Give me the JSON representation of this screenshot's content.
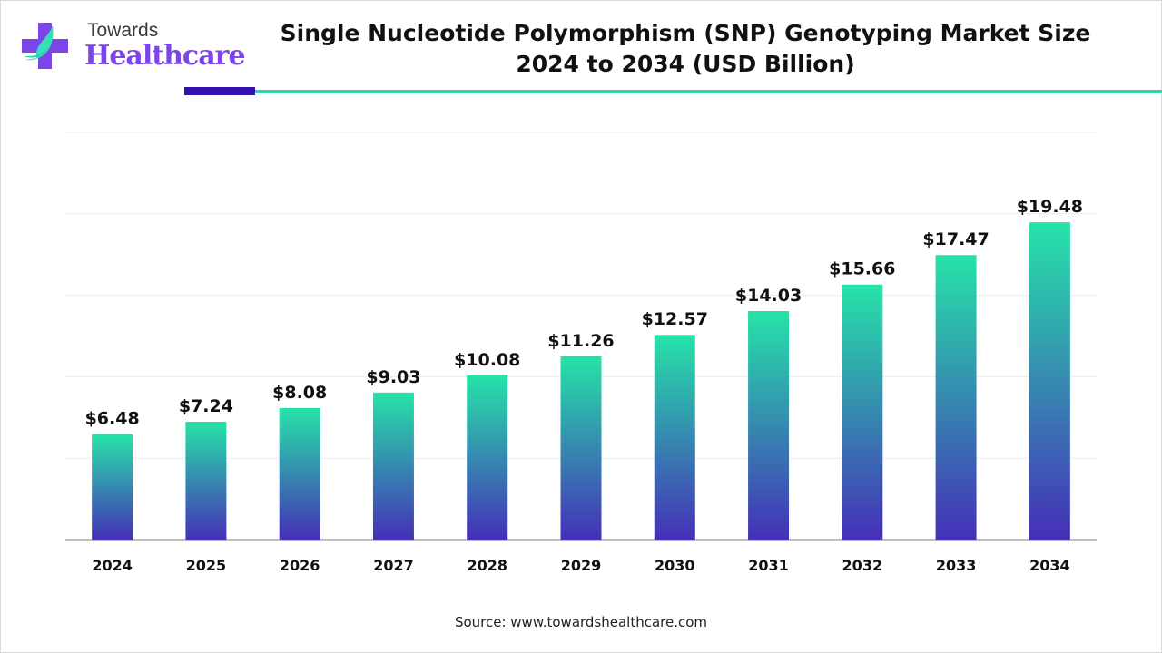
{
  "logo": {
    "line1": "Towards",
    "line2": "Healthcare"
  },
  "header": {
    "title_line1": "Single Nucleotide Polymorphism (SNP) Genotyping Market Size",
    "title_line2": "2024 to 2034 (USD Billion)"
  },
  "colors": {
    "bar_top": "#26e3a8",
    "bar_bottom": "#4530b8",
    "accent_dark": "#3311b0",
    "accent_teal": "#2ed6a8"
  },
  "chart_data": {
    "type": "bar",
    "title": "Single Nucleotide Polymorphism (SNP) Genotyping Market Size 2024 to 2034 (USD Billion)",
    "categories": [
      "2024",
      "2025",
      "2026",
      "2027",
      "2028",
      "2029",
      "2030",
      "2031",
      "2032",
      "2033",
      "2034"
    ],
    "values": [
      6.48,
      7.24,
      8.08,
      9.03,
      10.08,
      11.26,
      12.57,
      14.03,
      15.66,
      17.47,
      19.48
    ],
    "labels": [
      "$6.48",
      "$7.24",
      "$8.08",
      "$9.03",
      "$10.08",
      "$11.26",
      "$12.57",
      "$14.03",
      "$15.66",
      "$17.47",
      "$19.48"
    ],
    "ylim": [
      0,
      25
    ],
    "grid": true,
    "xlabel": "",
    "ylabel": ""
  },
  "footer": {
    "source": "Source: www.towardshealthcare.com"
  }
}
